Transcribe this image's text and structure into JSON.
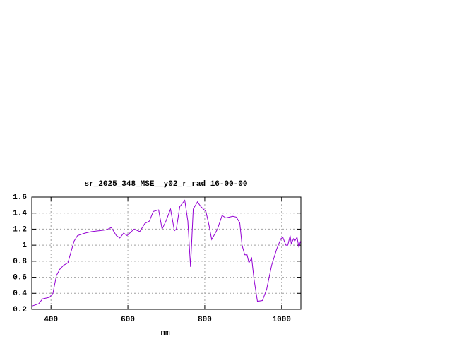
{
  "chart_data": {
    "type": "line",
    "title": "sr_2025_348_MSE__y02_r_rad 16-00-00",
    "x_label": "nm",
    "xlim": [
      350,
      1050
    ],
    "xticks": [
      400,
      600,
      800,
      1000
    ],
    "ylim": [
      0.2,
      1.6
    ],
    "yticks": [
      0.2,
      0.4,
      0.6,
      0.8,
      1,
      1.2,
      1.4,
      1.6
    ],
    "grid": true,
    "series": [
      {
        "color": "#9400d3",
        "x": [
          350,
          368,
          378,
          396,
          405,
          414,
          423,
          433,
          444,
          451,
          460,
          469,
          488,
          506,
          524,
          543,
          557,
          570,
          579,
          589,
          598,
          616,
          631,
          644,
          656,
          666,
          680,
          689,
          699,
          711,
          721,
          726,
          735,
          748,
          756,
          763,
          770,
          781,
          790,
          803,
          811,
          818,
          833,
          845,
          855,
          873,
          882,
          891,
          897,
          904,
          910,
          915,
          922,
          928,
          937,
          950,
          961,
          974,
          987,
          998,
          1003,
          1011,
          1016,
          1022,
          1025,
          1031,
          1034,
          1040,
          1045,
          1049
        ],
        "values": [
          0.24,
          0.27,
          0.33,
          0.35,
          0.4,
          0.62,
          0.7,
          0.75,
          0.78,
          0.9,
          1.05,
          1.12,
          1.15,
          1.17,
          1.18,
          1.19,
          1.22,
          1.12,
          1.09,
          1.15,
          1.12,
          1.2,
          1.17,
          1.27,
          1.3,
          1.42,
          1.44,
          1.2,
          1.3,
          1.45,
          1.18,
          1.2,
          1.48,
          1.56,
          1.3,
          0.73,
          1.45,
          1.54,
          1.48,
          1.42,
          1.25,
          1.07,
          1.2,
          1.37,
          1.34,
          1.36,
          1.35,
          1.28,
          1.0,
          0.88,
          0.88,
          0.78,
          0.84,
          0.58,
          0.3,
          0.31,
          0.45,
          0.75,
          0.95,
          1.08,
          1.1,
          1.0,
          1.0,
          1.12,
          1.02,
          1.08,
          1.05,
          1.1,
          0.97,
          1.05
        ]
      }
    ]
  }
}
